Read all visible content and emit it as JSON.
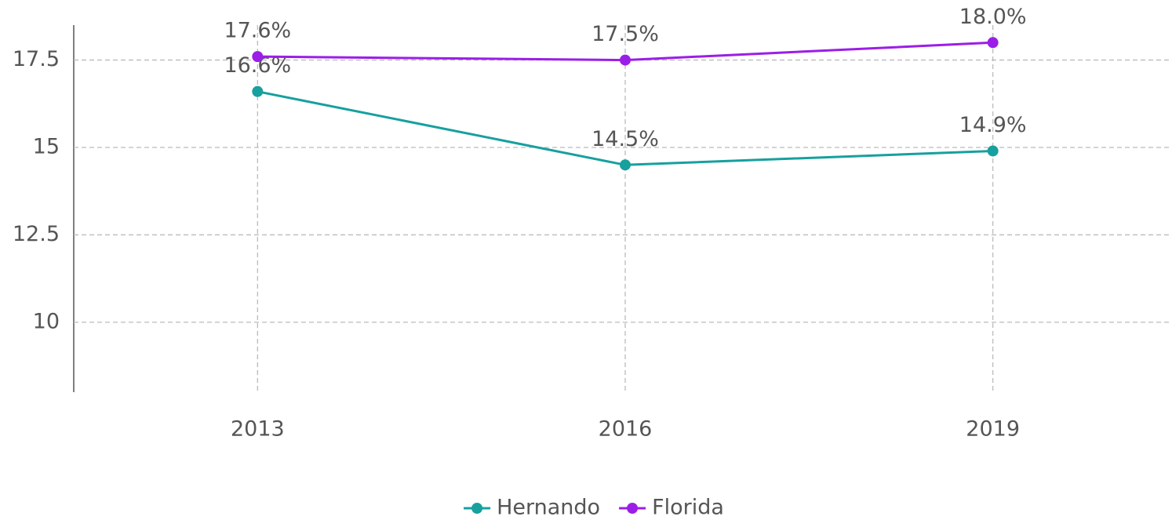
{
  "chart_data": {
    "type": "line",
    "categories": [
      "2013",
      "2016",
      "2019"
    ],
    "series": [
      {
        "name": "Hernando",
        "color": "#17a09e",
        "values": [
          16.6,
          14.5,
          14.9
        ],
        "value_labels": [
          "16.6%",
          "14.5%",
          "14.9%"
        ]
      },
      {
        "name": "Florida",
        "color": "#9b1ee8",
        "values": [
          17.6,
          17.5,
          18.0
        ],
        "value_labels": [
          "17.6%",
          "17.5%",
          "18.0%"
        ]
      }
    ],
    "ylim": [
      8,
      18.5
    ],
    "yticks": [
      10,
      12.5,
      15,
      17.5
    ],
    "grid": true,
    "legend": "bottom"
  }
}
